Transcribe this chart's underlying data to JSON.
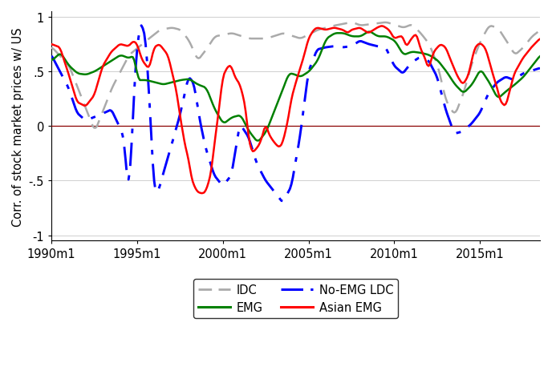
{
  "title": "",
  "ylabel": "Corr. of stock market prices w/ US",
  "xlabel": "",
  "xlim_start": 1990.0,
  "xlim_end": 2018.5,
  "ylim": [
    -1.05,
    1.05
  ],
  "yticks": [
    -1,
    -0.5,
    0,
    0.5,
    1
  ],
  "ytick_labels": [
    "-1",
    "-.5",
    "0",
    ".5",
    "1"
  ],
  "xtick_positions": [
    1990,
    1995,
    2000,
    2005,
    2010,
    2015
  ],
  "xtick_labels": [
    "1990m1",
    "1995m1",
    "2000m1",
    "2005m1",
    "2010m1",
    "2015m1"
  ],
  "zero_line_color": "#8B0000",
  "background_color": "#ffffff",
  "grid_color": "#c8c8c8",
  "idc_color": "#aaaaaa",
  "noemg_color": "#0000ff",
  "emg_color": "#008000",
  "asian_color": "#ff0000",
  "font_size": 10.5
}
